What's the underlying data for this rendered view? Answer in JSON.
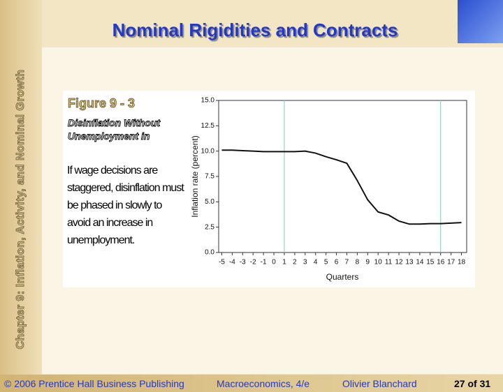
{
  "slide": {
    "title": "Nominal Rigidities and Contracts",
    "side_label": "Chapter 9: Inflation, Activity, and Nominal Growth",
    "figure_label": "Figure 9 - 3",
    "figure_title": "Disinflation Without Unemployment in",
    "body": "If wage decisions are staggered, disinflation must be phased in slowly to avoid an increase in unemployment.",
    "footer": {
      "copyright": "© 2006 Prentice Hall Business Publishing",
      "book": "Macroeconomics, 4/e",
      "author": "Olivier Blanchard",
      "page": "27 of 31"
    }
  },
  "chart_data": {
    "type": "line",
    "x": [
      -5,
      -4,
      -3,
      -2,
      -1,
      0,
      1,
      2,
      3,
      4,
      5,
      6,
      7,
      8,
      9,
      10,
      11,
      12,
      13,
      14,
      15,
      16,
      17,
      18
    ],
    "series": [
      {
        "name": "Inflation rate",
        "color": "#111111",
        "values": [
          10.1,
          10.1,
          10.05,
          10.0,
          9.95,
          9.95,
          9.95,
          9.95,
          10.0,
          9.8,
          9.45,
          9.15,
          8.8,
          7.1,
          5.2,
          4.0,
          3.7,
          3.1,
          2.8,
          2.8,
          2.85,
          2.85,
          2.9,
          2.95
        ]
      }
    ],
    "xlabel": "Quarters",
    "ylabel": "Inflation rate (percent)",
    "xlim": [
      -5.3,
      18.5
    ],
    "ylim": [
      0,
      15
    ],
    "xticks": [
      -5,
      -4,
      -3,
      -2,
      -1,
      0,
      1,
      2,
      3,
      4,
      5,
      6,
      7,
      8,
      9,
      10,
      11,
      12,
      13,
      14,
      15,
      16,
      17,
      18
    ],
    "yticks": [
      {
        "value": 0,
        "label": "0.0"
      },
      2.5,
      {
        "value": 5,
        "label": "5.0"
      },
      7.5,
      {
        "value": 10,
        "label": "10.0"
      },
      12.5,
      {
        "value": 15,
        "label": "15.0"
      }
    ],
    "reference_lines_x": [
      1,
      16
    ],
    "reference_color": "#9ccfc8"
  }
}
